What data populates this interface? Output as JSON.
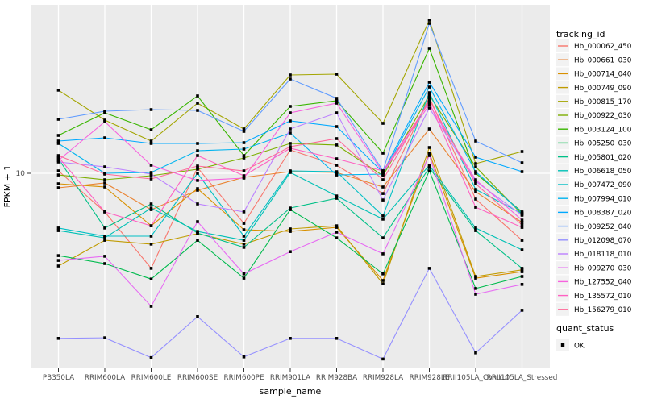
{
  "figure": {
    "xlabel": "sample_name",
    "ylabel": "FPKM + 1",
    "y_tick_label": "10",
    "legend_title": "tracking_id",
    "quant_legend_title": "quant_status",
    "quant_legend_label": "OK"
  },
  "colors": {
    "panel_bg": "#EBEBEB",
    "grid": "#FFFFFF",
    "legend_key_bg": "#F2F2F2",
    "tick_text": "#4D4D4D",
    "axis_title": "#000000",
    "point": "#000000"
  },
  "chart_data": {
    "type": "line",
    "title": "",
    "xlabel": "sample_name",
    "ylabel": "FPKM + 1",
    "yscale": "log10",
    "ybreaks": [
      10
    ],
    "ylim_approx": [
      1.25,
      65
    ],
    "grid": "major-on",
    "legend_position": "right",
    "point_marker": "filled-square",
    "quant_status_legend": {
      "title": "quant_status",
      "labels": [
        "OK"
      ]
    },
    "categories": [
      "PB350LA",
      "RRIM600LA",
      "RRIM600LE",
      "RRIM600SE",
      "RRIM600PE",
      "RRIM901LA",
      "RRIM928BA",
      "RRIM928LA",
      "RRIM928LE",
      "RRII105LA_Control",
      "RRII105LA_Stressed"
    ],
    "series": [
      {
        "name": "Hb_000062_450",
        "color": "#F8766D",
        "values": [
          10.27,
          6.54,
          3.52,
          10.64,
          5.77,
          12.93,
          10.93,
          8.01,
          22.99,
          7.53,
          4.79
        ]
      },
      {
        "name": "Hb_000661_030",
        "color": "#EA8331",
        "values": [
          8.53,
          8.99,
          6.71,
          8.3,
          9.57,
          10.18,
          10.09,
          8.6,
          16.28,
          8.16,
          5.83
        ]
      },
      {
        "name": "Hb_000714_040",
        "color": "#D89000",
        "values": [
          8.91,
          8.6,
          5.62,
          8.45,
          5.38,
          5.28,
          5.52,
          3.08,
          12.48,
          3.16,
          3.39
        ]
      },
      {
        "name": "Hb_000749_090",
        "color": "#C09B00",
        "values": [
          3.61,
          4.79,
          4.59,
          5.15,
          4.59,
          5.43,
          5.62,
          2.97,
          13.28,
          3.22,
          3.46
        ]
      },
      {
        "name": "Hb_000815_170",
        "color": "#A3A500",
        "values": [
          24.91,
          17.94,
          14.25,
          21.61,
          16.28,
          29.46,
          29.73,
          17.32,
          53.81,
          11.12,
          12.7
        ]
      },
      {
        "name": "Hb_000922_030",
        "color": "#7CAE00",
        "values": [
          9.82,
          9.32,
          9.74,
          10.45,
          11.83,
          13.88,
          13.64,
          9.74,
          23.61,
          10.73,
          6.37
        ]
      },
      {
        "name": "Hb_003124_100",
        "color": "#39B600",
        "values": [
          15.16,
          19.43,
          16.13,
          23.41,
          12.15,
          20.86,
          22.19,
          12.48,
          39.46,
          10.0,
          6.54
        ]
      },
      {
        "name": "Hb_005250_030",
        "color": "#00BB4E",
        "values": [
          4.05,
          3.71,
          3.13,
          4.79,
          3.16,
          6.71,
          4.92,
          3.31,
          10.27,
          2.82,
          3.22
        ]
      },
      {
        "name": "Hb_005801_020",
        "color": "#00C087",
        "values": [
          11.73,
          5.48,
          7.14,
          5.19,
          4.43,
          6.83,
          7.6,
          4.92,
          10.64,
          5.33,
          3.52
        ]
      },
      {
        "name": "Hb_006618_050",
        "color": "#00C0B5",
        "values": [
          5.33,
          4.92,
          6.83,
          5.28,
          4.79,
          10.09,
          7.8,
          6.04,
          10.93,
          5.48,
          4.31
        ]
      },
      {
        "name": "Hb_007472_090",
        "color": "#00BFC4",
        "values": [
          5.48,
          5.01,
          5.01,
          10.0,
          5.01,
          10.27,
          10.18,
          6.26,
          24.25,
          8.38,
          6.42
        ]
      },
      {
        "name": "Hb_007994_010",
        "color": "#00B4EF",
        "values": [
          13.88,
          10.0,
          10.09,
          12.81,
          13.04,
          15.57,
          9.82,
          9.91,
          25.8,
          10.18,
          6.48
        ]
      },
      {
        "name": "Hb_008387_020",
        "color": "#00A9FF",
        "values": [
          14.25,
          14.76,
          13.88,
          13.88,
          14.0,
          17.78,
          16.72,
          10.09,
          27.2,
          11.94,
          10.18
        ]
      },
      {
        "name": "Hb_009252_040",
        "color": "#619CFF",
        "values": [
          18.1,
          19.78,
          20.13,
          19.95,
          15.85,
          28.18,
          22.79,
          10.27,
          51.93,
          14.25,
          11.22
        ]
      },
      {
        "name": "Hb_012098_070",
        "color": "#9590FF",
        "values": [
          1.63,
          1.64,
          1.32,
          2.07,
          1.33,
          1.63,
          1.63,
          1.3,
          3.52,
          1.39,
          2.22
        ]
      },
      {
        "name": "Hb_018118_010",
        "color": "#BC81FF",
        "values": [
          11.32,
          10.73,
          9.91,
          7.14,
          6.54,
          16.28,
          19.43,
          7.46,
          20.49,
          9.15,
          6.31
        ]
      },
      {
        "name": "Hb_099270_030",
        "color": "#E76BF3",
        "values": [
          3.84,
          4.02,
          2.32,
          5.88,
          3.31,
          4.23,
          5.24,
          4.13,
          12.15,
          2.65,
          2.95
        ]
      },
      {
        "name": "Hb_127552_040",
        "color": "#F763DF",
        "values": [
          11.52,
          17.63,
          10.93,
          9.24,
          9.48,
          19.43,
          21.61,
          10.09,
          21.23,
          9.32,
          5.98
        ]
      },
      {
        "name": "Hb_135572_010",
        "color": "#FF61C2",
        "values": [
          11.94,
          6.54,
          5.62,
          12.15,
          9.74,
          13.16,
          11.73,
          10.27,
          21.81,
          6.89,
          5.52
        ]
      },
      {
        "name": "Hb_156279_010",
        "color": "#FF6A9A",
        "values": [
          12.15,
          9.91,
          9.4,
          10.83,
          10.27,
          13.39,
          14.64,
          9.32,
          22.39,
          8.91,
          5.67
        ]
      }
    ]
  }
}
